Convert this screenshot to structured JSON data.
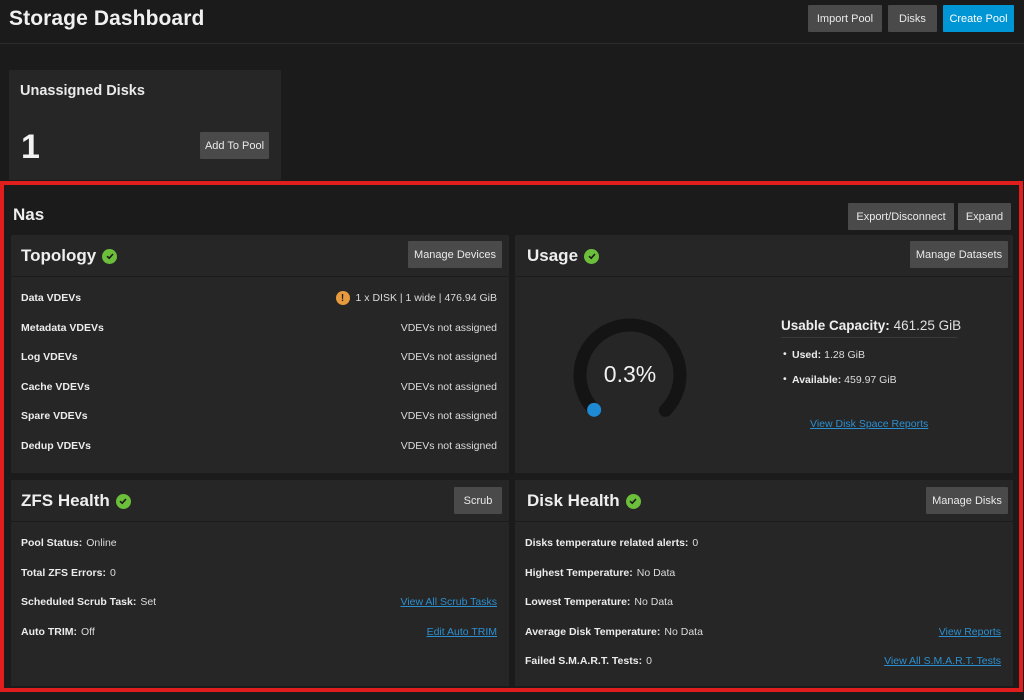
{
  "header": {
    "title": "Storage Dashboard",
    "import_pool": "Import Pool",
    "disks": "Disks",
    "create_pool": "Create Pool"
  },
  "unassigned": {
    "title": "Unassigned Disks",
    "count": "1",
    "add_button": "Add To Pool"
  },
  "pool": {
    "name": "Nas",
    "export_button": "Export/Disconnect",
    "expand_button": "Expand"
  },
  "topology": {
    "title": "Topology",
    "manage_button": "Manage Devices",
    "rows": [
      {
        "label": "Data VDEVs",
        "value": "1 x DISK | 1 wide | 476.94 GiB"
      },
      {
        "label": "Metadata VDEVs",
        "value": "VDEVs not assigned"
      },
      {
        "label": "Log VDEVs",
        "value": "VDEVs not assigned"
      },
      {
        "label": "Cache VDEVs",
        "value": "VDEVs not assigned"
      },
      {
        "label": "Spare VDEVs",
        "value": "VDEVs not assigned"
      },
      {
        "label": "Dedup VDEVs",
        "value": "VDEVs not assigned"
      }
    ]
  },
  "usage": {
    "title": "Usage",
    "manage_button": "Manage Datasets",
    "percent_label": "0.3%",
    "percent_value": 0.3,
    "capacity_label": "Usable Capacity:",
    "capacity_value": "461.25 GiB",
    "used_label": "Used:",
    "used_value": "1.28 GiB",
    "available_label": "Available:",
    "available_value": "459.97 GiB",
    "reports_link": "View Disk Space Reports"
  },
  "zfs_health": {
    "title": "ZFS Health",
    "scrub_button": "Scrub",
    "pool_status_label": "Pool Status:",
    "pool_status_value": "Online",
    "errors_label": "Total ZFS Errors:",
    "errors_value": "0",
    "scrub_task_label": "Scheduled Scrub Task:",
    "scrub_task_value": "Set",
    "scrub_link": "View All Scrub Tasks",
    "trim_label": "Auto TRIM:",
    "trim_value": "Off",
    "trim_link": "Edit Auto TRIM"
  },
  "disk_health": {
    "title": "Disk Health",
    "manage_button": "Manage Disks",
    "temp_alerts_label": "Disks temperature related alerts:",
    "temp_alerts_value": "0",
    "highest_label": "Highest Temperature:",
    "highest_value": "No Data",
    "lowest_label": "Lowest Temperature:",
    "lowest_value": "No Data",
    "average_label": "Average Disk Temperature:",
    "average_value": "No Data",
    "reports_link": "View Reports",
    "smart_label": "Failed S.M.A.R.T. Tests:",
    "smart_value": "0",
    "smart_link": "View All S.M.A.R.T. Tests"
  },
  "colors": {
    "background": "#1b1b1b",
    "card": "#262626",
    "button": "#4a4a4a",
    "primary": "#0095d5",
    "highlight": "#e01e1e",
    "ok": "#6cbf3b",
    "warning": "#e69a3d",
    "link": "#2c8fd0"
  },
  "icons": {
    "status_ok": "check-circle-icon",
    "status_warning": "exclamation-circle-icon"
  }
}
